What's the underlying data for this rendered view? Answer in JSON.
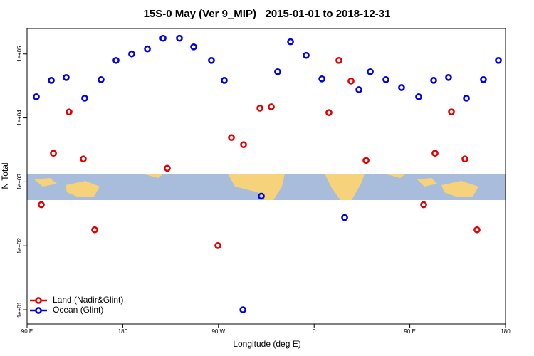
{
  "chart_data": {
    "type": "scatter",
    "title": "15S-0 May (Ver 9_MIP)   2015-01-01 to 2018-12-31",
    "x_label": "Longitude (deg E)",
    "y_label": "N Total",
    "xlim": [
      90,
      540
    ],
    "xticks": [
      {
        "value": 90,
        "label": "90 E"
      },
      180,
      {
        "value": 270,
        "label": "90 W"
      },
      {
        "value": 360,
        "label": "0"
      },
      {
        "value": 450,
        "label": "90 E"
      },
      {
        "value": 540,
        "label": "180"
      }
    ],
    "ylim": [
      6,
      250000
    ],
    "log_y": true,
    "yticks": [
      {
        "value": 10,
        "label": "1e+01"
      },
      {
        "value": 100,
        "label": "1e+02"
      },
      {
        "value": 1000,
        "label": "1e+03"
      },
      {
        "value": 10000,
        "label": "1e+04"
      },
      {
        "value": 100000,
        "label": "1e+05"
      }
    ],
    "legend": "bottom-left",
    "series": [
      {
        "name": "Land (Nadir&Glint)",
        "color": "#e00000",
        "x": [
          103.4,
          114.8,
          129.5,
          142.9,
          153.6,
          221.9,
          269.5,
          282.2,
          293.6,
          309.0,
          319.7,
          373.9,
          383.3,
          394.7,
          408.8,
          463.0,
          473.7,
          489.1,
          501.8,
          513.2
        ],
        "values": [
          439,
          2800,
          12400,
          2280,
          178,
          1630,
          101,
          4930,
          3810,
          14200,
          14900,
          12100,
          79300,
          37600,
          2160,
          439,
          2800,
          12400,
          2280,
          178
        ]
      },
      {
        "name": "Ocean (Glint)",
        "color": "#0000e0",
        "x": [
          98.7,
          112.8,
          126.8,
          144.2,
          159.6,
          173.7,
          188.4,
          203.2,
          217.9,
          233.3,
          246.7,
          263.4,
          275.5,
          293.0,
          310.3,
          325.7,
          337.8,
          352.5,
          367.3,
          388.7,
          402.1,
          412.8,
          427.5,
          442.2,
          458.3,
          472.4,
          486.4,
          503.2,
          519.2,
          533.3
        ],
        "values": [
          21400,
          38600,
          42800,
          20300,
          39600,
          79300,
          100000,
          120000,
          176000,
          176000,
          129000,
          79300,
          38600,
          10,
          598,
          52600,
          155000,
          95000,
          40700,
          276,
          27600,
          52600,
          39600,
          29800,
          21400,
          38600,
          42800,
          20300,
          39600,
          79300
        ]
      }
    ]
  }
}
